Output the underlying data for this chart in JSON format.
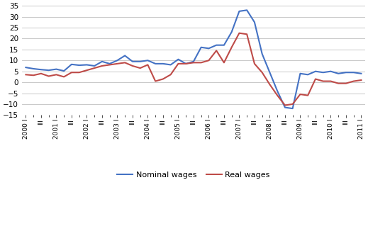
{
  "title": "",
  "xlabel": "",
  "ylabel": "",
  "ylim": [
    -15,
    35
  ],
  "yticks": [
    -15,
    -10,
    -5,
    0,
    5,
    10,
    15,
    20,
    25,
    30,
    35
  ],
  "nominal_wages": [
    6.8,
    6.2,
    5.8,
    5.5,
    6.0,
    5.2,
    8.2,
    7.8,
    8.0,
    7.5,
    9.5,
    8.5,
    10.0,
    12.2,
    9.5,
    9.5,
    10.0,
    8.5,
    8.5,
    8.0,
    10.5,
    8.5,
    9.5,
    16.0,
    15.5,
    17.0,
    17.0,
    23.0,
    32.5,
    33.0,
    27.5,
    13.0,
    4.5,
    -4.0,
    -11.5,
    -12.0,
    4.0,
    3.5,
    5.0,
    4.5,
    5.0,
    4.0,
    4.5,
    4.5,
    4.0
  ],
  "real_wages": [
    3.5,
    3.2,
    4.0,
    2.8,
    3.5,
    2.5,
    4.5,
    4.5,
    5.5,
    6.5,
    7.5,
    8.0,
    8.5,
    9.0,
    7.5,
    6.5,
    8.0,
    0.5,
    1.5,
    3.5,
    8.5,
    8.5,
    9.0,
    9.0,
    10.0,
    14.5,
    9.0,
    16.0,
    22.5,
    22.0,
    8.5,
    4.5,
    -1.0,
    -6.0,
    -10.5,
    -10.0,
    -5.5,
    -6.0,
    1.5,
    0.5,
    0.5,
    -0.5,
    -0.5,
    0.5,
    1.0
  ],
  "nominal_color": "#4472C4",
  "real_color": "#BE4B48",
  "line_width": 1.5,
  "background_color": "#FFFFFF",
  "grid_color": "#C0C0C0",
  "legend_nominal": "Nominal wages",
  "legend_real": "Real wages",
  "tick_label_fontsize": 6.5,
  "ytick_fontsize": 7.5
}
